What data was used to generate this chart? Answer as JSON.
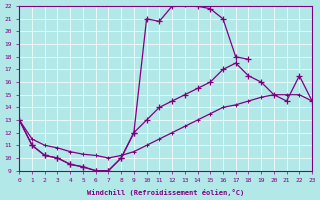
{
  "xlabel": "Windchill (Refroidissement éolien,°C)",
  "bg_color": "#b2e8e8",
  "line_color": "#800080",
  "xlim": [
    0,
    23
  ],
  "ylim": [
    9,
    22
  ],
  "xticks": [
    0,
    1,
    2,
    3,
    4,
    5,
    6,
    7,
    8,
    9,
    10,
    11,
    12,
    13,
    14,
    15,
    16,
    17,
    18,
    19,
    20,
    21,
    22,
    23
  ],
  "yticks": [
    9,
    10,
    11,
    12,
    13,
    14,
    15,
    16,
    17,
    18,
    19,
    20,
    21,
    22
  ],
  "curve1_x": [
    0,
    1,
    2,
    3,
    4,
    5,
    6,
    7,
    8,
    9,
    10,
    11,
    12,
    13,
    14,
    15,
    16,
    17,
    18
  ],
  "curve1_y": [
    13,
    11,
    10.2,
    10,
    9.5,
    9.3,
    9.0,
    9.0,
    10,
    12,
    21,
    20.8,
    22,
    22.2,
    22,
    21.8,
    21,
    18,
    17.8
  ],
  "curve2_x": [
    0,
    1,
    2,
    3,
    4,
    5,
    6,
    7,
    8,
    9,
    10,
    11,
    12,
    13,
    14,
    15,
    16,
    17,
    18,
    19,
    20,
    21,
    22,
    23
  ],
  "curve2_y": [
    13,
    11,
    10.2,
    10,
    9.5,
    9.3,
    9.0,
    9.0,
    10,
    12,
    13,
    14,
    14.5,
    15,
    15.5,
    16,
    17,
    17.5,
    16.5,
    16,
    15,
    14.5,
    16.5,
    14.5
  ],
  "curve3_x": [
    0,
    1,
    2,
    3,
    4,
    5,
    6,
    7,
    8,
    9,
    10,
    11,
    12,
    13,
    14,
    15,
    16,
    17,
    18,
    19,
    20,
    21,
    22,
    23
  ],
  "curve3_y": [
    13,
    11.5,
    11,
    10.8,
    10.5,
    10.3,
    10.2,
    10.0,
    10.2,
    10.5,
    11,
    11.5,
    12,
    12.5,
    13,
    13.5,
    14,
    14.2,
    14.5,
    14.8,
    15,
    15,
    15,
    14.5
  ]
}
